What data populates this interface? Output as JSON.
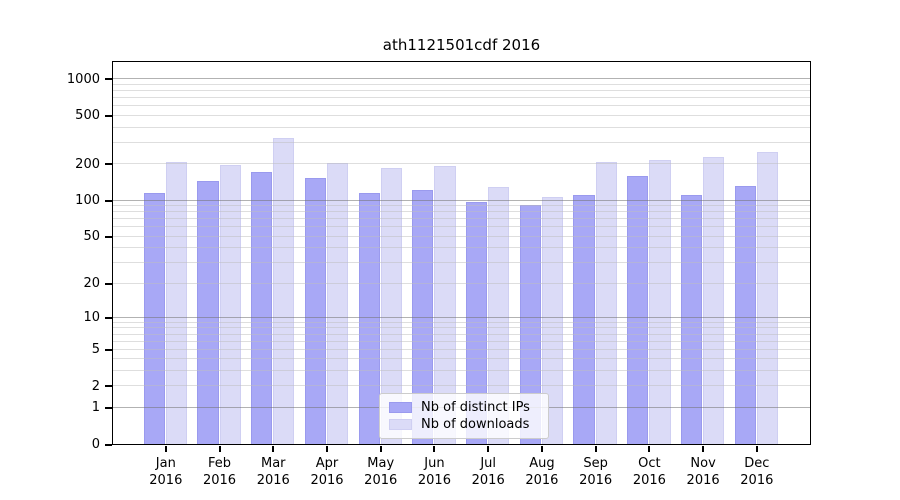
{
  "chart_data": {
    "type": "bar",
    "title": "ath1121501cdf 2016",
    "categories": [
      "Jan",
      "Feb",
      "Mar",
      "Apr",
      "May",
      "Jun",
      "Jul",
      "Aug",
      "Sep",
      "Oct",
      "Nov",
      "Dec"
    ],
    "x_sub_label": "2016",
    "series": [
      {
        "name": "Nb of distinct IPs",
        "color": "#a8a8f6",
        "edge_color": "#9a9aee",
        "values": [
          115,
          145,
          172,
          153,
          114,
          121,
          97,
          91,
          110,
          158,
          110,
          131
        ]
      },
      {
        "name": "Nb of downloads",
        "color": "#dbdbf7",
        "edge_color": "#cfcff2",
        "values": [
          205,
          196,
          328,
          203,
          184,
          191,
          128,
          106,
          208,
          213,
          227,
          250
        ]
      }
    ],
    "y_ticks": [
      0,
      1,
      2,
      5,
      10,
      20,
      50,
      100,
      200,
      500,
      1000
    ],
    "y_scale": "log1p",
    "ylim": [
      0,
      1373
    ],
    "xlabel": "",
    "ylabel": "",
    "grid": true,
    "legend_position": "lower-center"
  }
}
